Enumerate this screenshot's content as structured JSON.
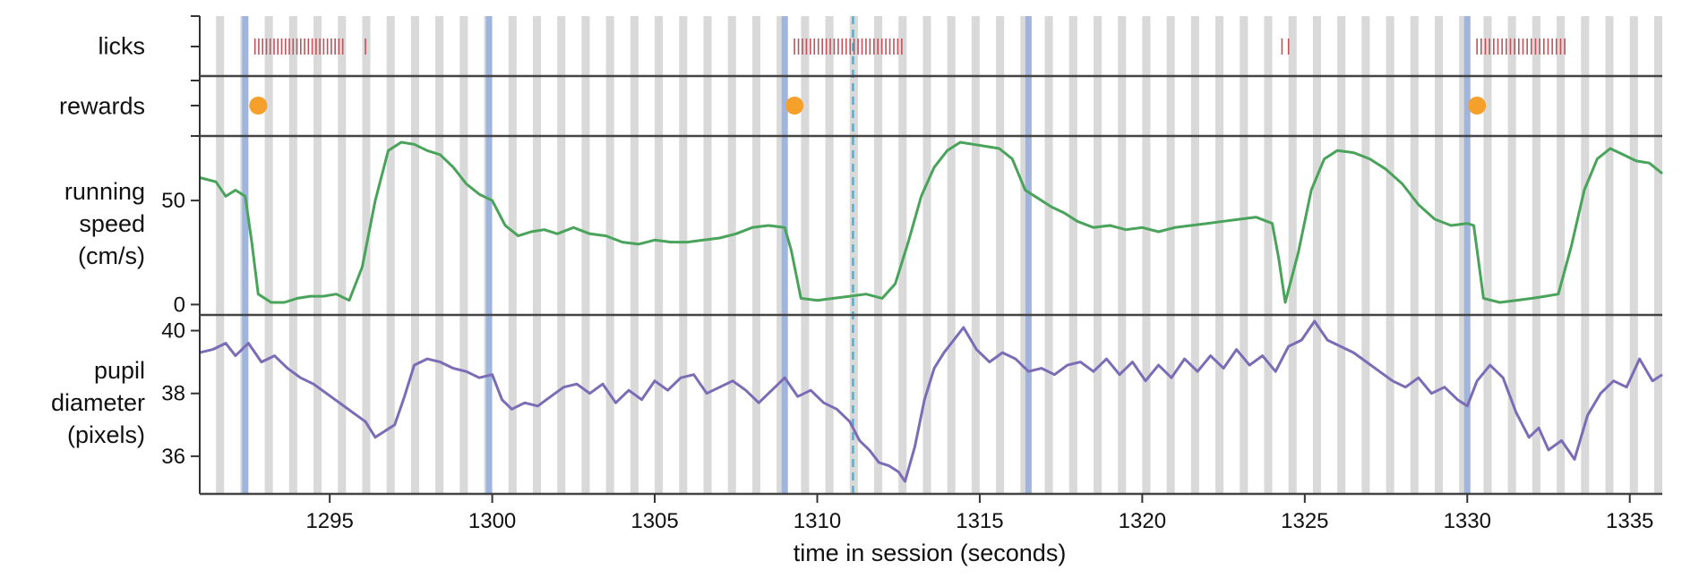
{
  "chart_data": {
    "type": "line",
    "title": "",
    "xlabel": "time in session (seconds)",
    "xlim": [
      1291.0,
      1336.0
    ],
    "x_ticks": [
      1295,
      1300,
      1305,
      1310,
      1315,
      1320,
      1325,
      1330,
      1335
    ],
    "x_tick_labels": [
      "1295",
      "1300",
      "1305",
      "1310",
      "1315",
      "1320",
      "1325",
      "1330",
      "1335"
    ],
    "stimulus_flashes": {
      "start": 1291.5,
      "period": 0.75,
      "duration": 0.25,
      "color": "#d9d9d9"
    },
    "change_times": [
      1292.4,
      1299.9,
      1309.0,
      1316.5,
      1330.0
    ],
    "change_color": "#9fb5dd",
    "dashed_line_time": 1311.1,
    "dashed_line_color": "#4fb1d6",
    "panels": [
      {
        "id": "licks",
        "label_lines": [
          "licks"
        ],
        "color": "#c0525a",
        "lick_bouts": [
          {
            "start": 1292.7,
            "end": 1295.4,
            "count": 24
          },
          {
            "start": 1296.1,
            "end": 1296.1,
            "count": 1
          },
          {
            "start": 1309.3,
            "end": 1312.6,
            "count": 28
          },
          {
            "start": 1324.3,
            "end": 1324.5,
            "count": 2
          },
          {
            "start": 1330.3,
            "end": 1333.0,
            "count": 22
          }
        ]
      },
      {
        "id": "rewards",
        "label_lines": [
          "rewards"
        ],
        "color": "#f5a02a",
        "reward_times": [
          1292.8,
          1309.3,
          1330.3
        ]
      },
      {
        "id": "running",
        "label_lines": [
          "running",
          "speed",
          "(cm/s)"
        ],
        "color": "#4aa35a",
        "ylim": [
          -5,
          81
        ],
        "y_ticks": [
          0,
          50
        ],
        "y_tick_labels": [
          "0",
          "50"
        ],
        "x": [
          1291.0,
          1291.5,
          1291.8,
          1292.1,
          1292.4,
          1292.6,
          1292.8,
          1293.2,
          1293.6,
          1294.0,
          1294.4,
          1294.8,
          1295.2,
          1295.6,
          1296.0,
          1296.4,
          1296.8,
          1297.2,
          1297.6,
          1298.0,
          1298.4,
          1298.8,
          1299.2,
          1299.6,
          1300.0,
          1300.4,
          1300.8,
          1301.2,
          1301.6,
          1302.0,
          1302.5,
          1303.0,
          1303.5,
          1304.0,
          1304.5,
          1305.0,
          1305.5,
          1306.0,
          1306.5,
          1307.0,
          1307.5,
          1308.0,
          1308.5,
          1309.0,
          1309.2,
          1309.5,
          1310.0,
          1310.5,
          1311.0,
          1311.5,
          1312.0,
          1312.4,
          1312.8,
          1313.2,
          1313.6,
          1314.0,
          1314.4,
          1314.8,
          1315.2,
          1315.6,
          1316.0,
          1316.4,
          1316.8,
          1317.2,
          1317.6,
          1318.0,
          1318.5,
          1319.0,
          1319.5,
          1320.0,
          1320.5,
          1321.0,
          1321.5,
          1322.0,
          1322.5,
          1323.0,
          1323.5,
          1324.0,
          1324.2,
          1324.4,
          1324.8,
          1325.2,
          1325.6,
          1326.0,
          1326.5,
          1327.0,
          1327.5,
          1328.0,
          1328.5,
          1329.0,
          1329.5,
          1330.0,
          1330.2,
          1330.5,
          1331.0,
          1331.5,
          1332.0,
          1332.4,
          1332.8,
          1333.2,
          1333.6,
          1334.0,
          1334.4,
          1334.8,
          1335.2,
          1335.6,
          1336.0
        ],
        "y": [
          61,
          59,
          52,
          55,
          52,
          30,
          5,
          1,
          1,
          3,
          4,
          4,
          5,
          2,
          18,
          50,
          74,
          78,
          77,
          74,
          72,
          66,
          58,
          53,
          50,
          38,
          33,
          35,
          36,
          34,
          37,
          34,
          33,
          30,
          29,
          31,
          30,
          30,
          31,
          32,
          34,
          37,
          38,
          37,
          26,
          3,
          2,
          3,
          4,
          5,
          3,
          10,
          30,
          52,
          66,
          74,
          78,
          77,
          76,
          75,
          70,
          55,
          51,
          47,
          44,
          40,
          37,
          38,
          36,
          37,
          35,
          37,
          38,
          39,
          40,
          41,
          42,
          39,
          22,
          1,
          25,
          55,
          70,
          74,
          73,
          70,
          65,
          58,
          48,
          41,
          38,
          39,
          38,
          3,
          1,
          2,
          3,
          4,
          5,
          28,
          55,
          70,
          75,
          72,
          69,
          68,
          63
        ]
      },
      {
        "id": "pupil",
        "label_lines": [
          "pupil",
          "diameter",
          "(pixels)"
        ],
        "color": "#7b6cb5",
        "ylim": [
          34.8,
          40.5
        ],
        "y_ticks": [
          36,
          38,
          40
        ],
        "y_tick_labels": [
          "36",
          "38",
          "40"
        ],
        "x": [
          1291.0,
          1291.4,
          1291.8,
          1292.1,
          1292.5,
          1292.9,
          1293.3,
          1293.7,
          1294.1,
          1294.5,
          1294.9,
          1295.3,
          1295.7,
          1296.1,
          1296.4,
          1296.7,
          1297.0,
          1297.3,
          1297.6,
          1298.0,
          1298.4,
          1298.8,
          1299.2,
          1299.6,
          1300.0,
          1300.3,
          1300.6,
          1301.0,
          1301.4,
          1301.8,
          1302.2,
          1302.6,
          1303.0,
          1303.4,
          1303.8,
          1304.2,
          1304.6,
          1305.0,
          1305.4,
          1305.8,
          1306.2,
          1306.6,
          1307.0,
          1307.4,
          1307.8,
          1308.2,
          1308.6,
          1309.0,
          1309.4,
          1309.8,
          1310.2,
          1310.6,
          1311.0,
          1311.3,
          1311.6,
          1311.9,
          1312.2,
          1312.5,
          1312.7,
          1313.0,
          1313.3,
          1313.6,
          1313.9,
          1314.2,
          1314.5,
          1314.9,
          1315.3,
          1315.7,
          1316.1,
          1316.5,
          1316.9,
          1317.3,
          1317.7,
          1318.1,
          1318.5,
          1318.9,
          1319.3,
          1319.7,
          1320.1,
          1320.5,
          1320.9,
          1321.3,
          1321.7,
          1322.1,
          1322.5,
          1322.9,
          1323.3,
          1323.7,
          1324.1,
          1324.5,
          1324.9,
          1325.3,
          1325.7,
          1326.1,
          1326.5,
          1326.9,
          1327.3,
          1327.7,
          1328.1,
          1328.5,
          1328.9,
          1329.3,
          1329.7,
          1330.0,
          1330.3,
          1330.7,
          1331.1,
          1331.5,
          1331.9,
          1332.2,
          1332.5,
          1332.9,
          1333.3,
          1333.7,
          1334.1,
          1334.5,
          1334.9,
          1335.3,
          1335.7,
          1336.0
        ],
        "y": [
          39.3,
          39.4,
          39.6,
          39.2,
          39.6,
          39.0,
          39.2,
          38.8,
          38.5,
          38.3,
          38.0,
          37.7,
          37.4,
          37.1,
          36.6,
          36.8,
          37.0,
          37.9,
          38.9,
          39.1,
          39.0,
          38.8,
          38.7,
          38.5,
          38.6,
          37.8,
          37.5,
          37.7,
          37.6,
          37.9,
          38.2,
          38.3,
          38.0,
          38.3,
          37.7,
          38.1,
          37.8,
          38.4,
          38.1,
          38.5,
          38.6,
          38.0,
          38.2,
          38.4,
          38.1,
          37.7,
          38.1,
          38.5,
          37.9,
          38.1,
          37.7,
          37.5,
          37.1,
          36.5,
          36.2,
          35.8,
          35.7,
          35.5,
          35.2,
          36.3,
          37.8,
          38.8,
          39.3,
          39.7,
          40.1,
          39.4,
          39.0,
          39.3,
          39.1,
          38.7,
          38.8,
          38.6,
          38.9,
          39.0,
          38.7,
          39.1,
          38.6,
          39.0,
          38.4,
          38.9,
          38.5,
          39.1,
          38.7,
          39.2,
          38.8,
          39.4,
          38.9,
          39.2,
          38.7,
          39.5,
          39.7,
          40.3,
          39.7,
          39.5,
          39.3,
          39.0,
          38.7,
          38.4,
          38.2,
          38.5,
          38.0,
          38.2,
          37.8,
          37.6,
          38.4,
          38.9,
          38.5,
          37.4,
          36.6,
          36.9,
          36.2,
          36.5,
          35.9,
          37.3,
          38.0,
          38.4,
          38.2,
          39.1,
          38.4,
          38.6
        ]
      }
    ]
  }
}
